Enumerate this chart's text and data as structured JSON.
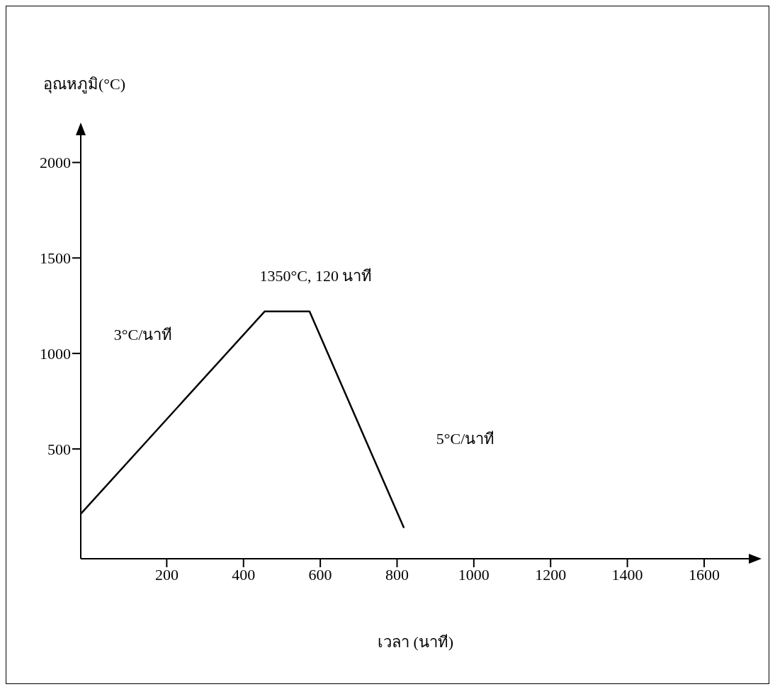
{
  "chart_data": {
    "type": "line",
    "xlabel": "เวลา (นาที)",
    "ylabel": "อุณหภูมิ(°C)",
    "x": [
      -24,
      455,
      572,
      818
    ],
    "series": [
      {
        "color": "#000000",
        "values": [
          160,
          1220,
          1220,
          86
        ]
      }
    ],
    "xlim": [
      -24,
      1720
    ],
    "xticks": [
      200,
      400,
      600,
      800,
      1000,
      1200,
      1400,
      1600
    ],
    "ylim": [
      -75,
      2150
    ],
    "yticks": [
      500,
      1000,
      1500,
      2000
    ],
    "annotations": [
      "3°C/นาที",
      "1350°C, 120 นาที",
      "5°C/นาที"
    ]
  }
}
